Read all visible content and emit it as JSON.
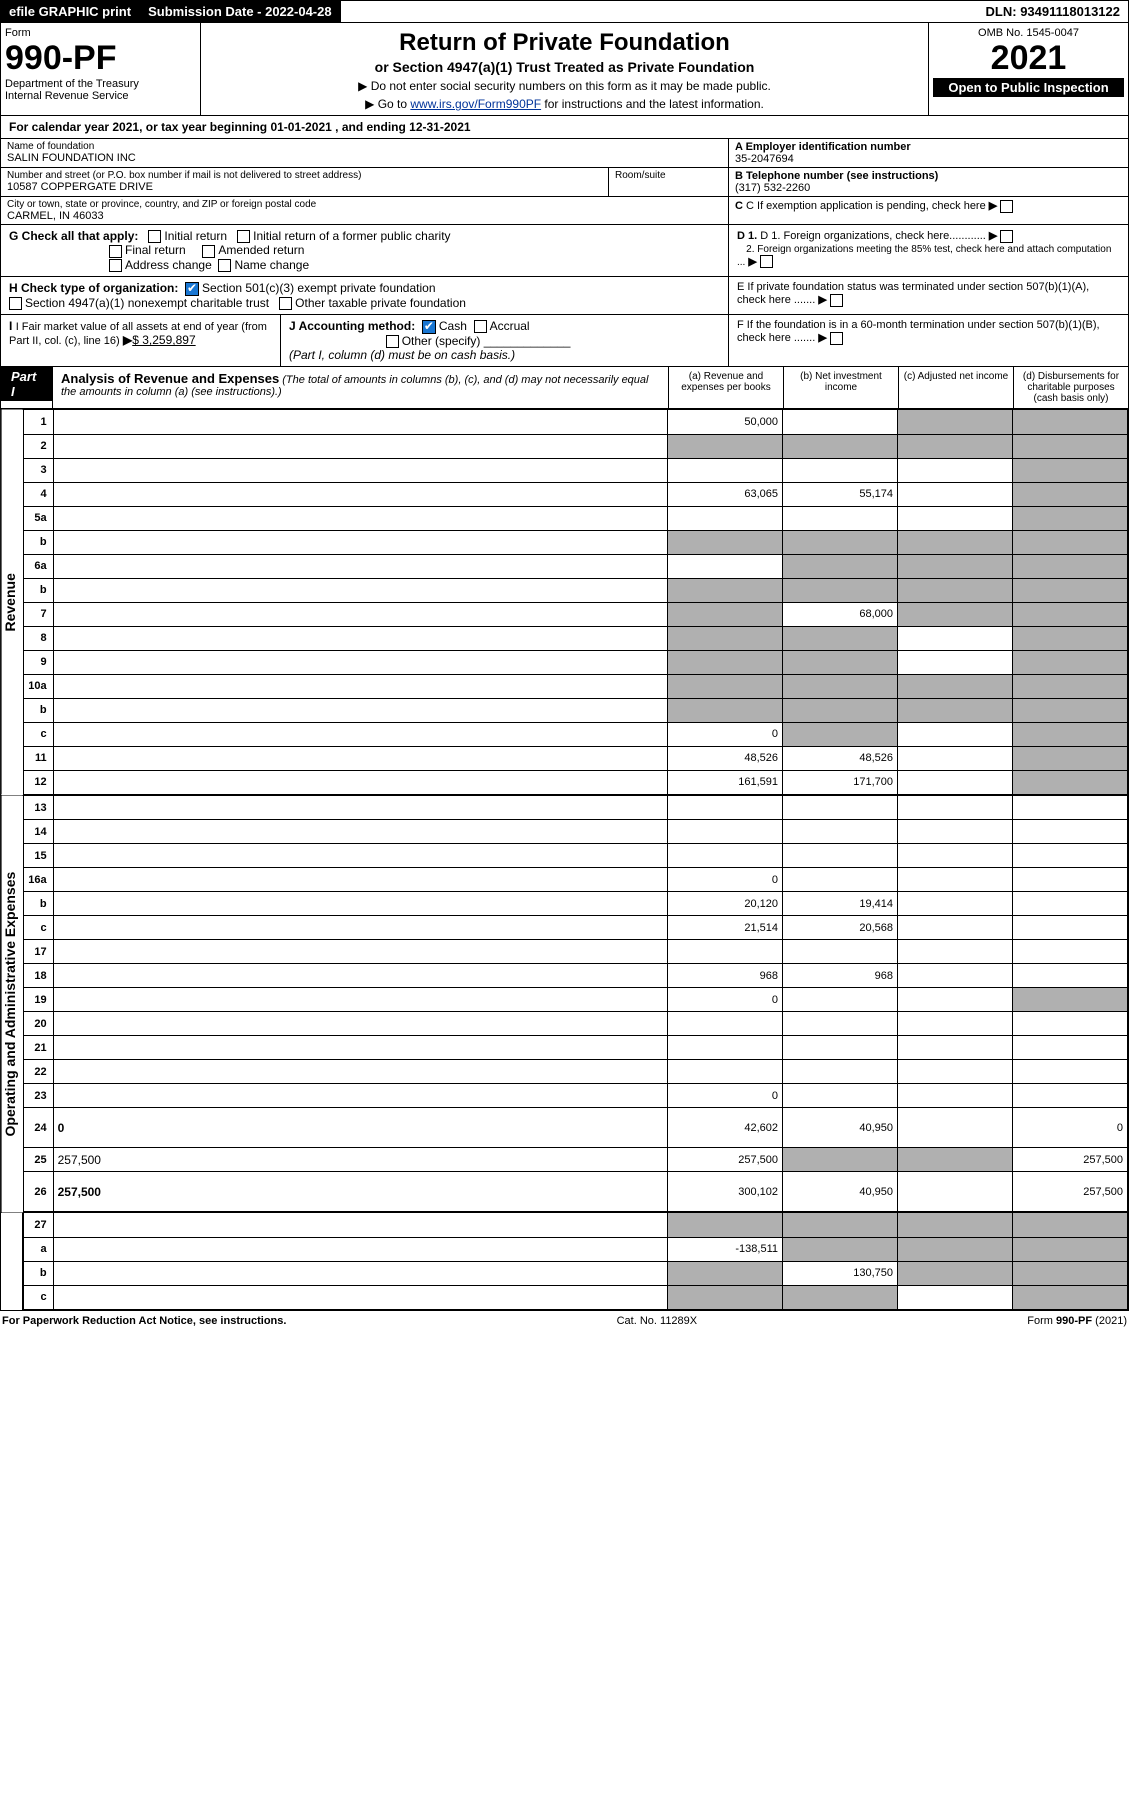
{
  "topbar": {
    "efile": "efile GRAPHIC print",
    "submission_label": "Submission Date - 2022-04-28",
    "dln": "DLN: 93491118013122"
  },
  "header": {
    "form_word": "Form",
    "form_no": "990-PF",
    "dept": "Department of the Treasury",
    "irs": "Internal Revenue Service",
    "title": "Return of Private Foundation",
    "subtitle": "or Section 4947(a)(1) Trust Treated as Private Foundation",
    "instr1": "▶ Do not enter social security numbers on this form as it may be made public.",
    "instr2_pre": "▶ Go to ",
    "instr2_link": "www.irs.gov/Form990PF",
    "instr2_post": " for instructions and the latest information.",
    "omb": "OMB No. 1545-0047",
    "year": "2021",
    "inspect": "Open to Public Inspection"
  },
  "cal_year": "For calendar year 2021, or tax year beginning 01-01-2021                , and ending 12-31-2021",
  "name": {
    "lbl": "Name of foundation",
    "val": "SALIN FOUNDATION INC",
    "addr_lbl": "Number and street (or P.O. box number if mail is not delivered to street address)",
    "addr_val": "10587 COPPERGATE DRIVE",
    "room_lbl": "Room/suite",
    "city_lbl": "City or town, state or province, country, and ZIP or foreign postal code",
    "city_val": "CARMEL, IN  46033"
  },
  "rightinfo": {
    "a_lbl": "A Employer identification number",
    "a_val": "35-2047694",
    "b_lbl": "B Telephone number (see instructions)",
    "b_val": "(317) 532-2260",
    "c_lbl": "C If exemption application is pending, check here",
    "d1_lbl": "D 1. Foreign organizations, check here............",
    "d2_lbl": "2. Foreign organizations meeting the 85% test, check here and attach computation ...",
    "e_lbl": "E  If private foundation status was terminated under section 507(b)(1)(A), check here .......",
    "f_lbl": "F  If the foundation is in a 60-month termination under section 507(b)(1)(B), check here ......."
  },
  "g": {
    "lbl": "G Check all that apply:",
    "opts": [
      "Initial return",
      "Initial return of a former public charity",
      "Final return",
      "Amended return",
      "Address change",
      "Name change"
    ]
  },
  "h": {
    "lbl": "H Check type of organization:",
    "o1": "Section 501(c)(3) exempt private foundation",
    "o2": "Section 4947(a)(1) nonexempt charitable trust",
    "o3": "Other taxable private foundation"
  },
  "i": {
    "lbl": "I Fair market value of all assets at end of year (from Part II, col. (c), line 16)",
    "val": "$  3,259,897"
  },
  "j": {
    "lbl": "J Accounting method:",
    "o1": "Cash",
    "o2": "Accrual",
    "o3": "Other (specify)",
    "note": "(Part I, column (d) must be on cash basis.)"
  },
  "part1": {
    "num": "Part I",
    "title": "Analysis of Revenue and Expenses",
    "desc": "(The total of amounts in columns (b), (c), and (d) may not necessarily equal the amounts in column (a) (see instructions).)",
    "col_a": "(a)  Revenue and expenses per books",
    "col_b": "(b)  Net investment income",
    "col_c": "(c)  Adjusted net income",
    "col_d": "(d)  Disbursements for charitable purposes (cash basis only)"
  },
  "side_rev": "Revenue",
  "side_exp": "Operating and Administrative Expenses",
  "rows": [
    {
      "n": "1",
      "d": "",
      "a": "50,000",
      "b": "",
      "c": "",
      "bg": "",
      "cg": "g",
      "dg": "g"
    },
    {
      "n": "2",
      "d": "",
      "a": "",
      "b": "",
      "c": "",
      "ag": "g",
      "bg": "g",
      "cg": "g",
      "dg": "g"
    },
    {
      "n": "3",
      "d": "",
      "a": "",
      "b": "",
      "c": "",
      "dg": "g"
    },
    {
      "n": "4",
      "d": "",
      "a": "63,065",
      "b": "55,174",
      "c": "",
      "dg": "g"
    },
    {
      "n": "5a",
      "d": "",
      "a": "",
      "b": "",
      "c": "",
      "dg": "g"
    },
    {
      "n": "b",
      "d": "",
      "a": "",
      "b": "",
      "c": "",
      "ag": "g",
      "bg": "g",
      "cg": "g",
      "dg": "g"
    },
    {
      "n": "6a",
      "d": "",
      "a": "",
      "b": "",
      "c": "",
      "bg": "g",
      "cg": "g",
      "dg": "g"
    },
    {
      "n": "b",
      "d": "",
      "a": "",
      "b": "",
      "c": "",
      "ag": "g",
      "bg": "g",
      "cg": "g",
      "dg": "g"
    },
    {
      "n": "7",
      "d": "",
      "a": "",
      "b": "68,000",
      "c": "",
      "ag": "g",
      "cg": "g",
      "dg": "g"
    },
    {
      "n": "8",
      "d": "",
      "a": "",
      "b": "",
      "c": "",
      "ag": "g",
      "bg": "g",
      "dg": "g"
    },
    {
      "n": "9",
      "d": "",
      "a": "",
      "b": "",
      "c": "",
      "ag": "g",
      "bg": "g",
      "dg": "g"
    },
    {
      "n": "10a",
      "d": "",
      "a": "",
      "b": "",
      "c": "",
      "ag": "g",
      "bg": "g",
      "cg": "g",
      "dg": "g"
    },
    {
      "n": "b",
      "d": "",
      "a": "",
      "b": "",
      "c": "",
      "ag": "g",
      "bg": "g",
      "cg": "g",
      "dg": "g"
    },
    {
      "n": "c",
      "d": "",
      "a": "0",
      "b": "",
      "c": "",
      "bg": "g",
      "dg": "g"
    },
    {
      "n": "11",
      "d": "",
      "a": "48,526",
      "b": "48,526",
      "c": "",
      "dg": "g"
    },
    {
      "n": "12",
      "d": "",
      "a": "161,591",
      "b": "171,700",
      "c": "",
      "bold": true,
      "dg": "g"
    },
    {
      "n": "13",
      "d": "",
      "a": "",
      "b": "",
      "c": "",
      "sec": "exp"
    },
    {
      "n": "14",
      "d": "",
      "a": "",
      "b": "",
      "c": ""
    },
    {
      "n": "15",
      "d": "",
      "a": "",
      "b": "",
      "c": ""
    },
    {
      "n": "16a",
      "d": "",
      "a": "0",
      "b": "",
      "c": ""
    },
    {
      "n": "b",
      "d": "",
      "a": "20,120",
      "b": "19,414",
      "c": ""
    },
    {
      "n": "c",
      "d": "",
      "a": "21,514",
      "b": "20,568",
      "c": ""
    },
    {
      "n": "17",
      "d": "",
      "a": "",
      "b": "",
      "c": ""
    },
    {
      "n": "18",
      "d": "",
      "a": "968",
      "b": "968",
      "c": ""
    },
    {
      "n": "19",
      "d": "",
      "a": "0",
      "b": "",
      "c": "",
      "dg": "g"
    },
    {
      "n": "20",
      "d": "",
      "a": "",
      "b": "",
      "c": ""
    },
    {
      "n": "21",
      "d": "",
      "a": "",
      "b": "",
      "c": ""
    },
    {
      "n": "22",
      "d": "",
      "a": "",
      "b": "",
      "c": ""
    },
    {
      "n": "23",
      "d": "",
      "a": "0",
      "b": "",
      "c": ""
    },
    {
      "n": "24",
      "d": "0",
      "a": "42,602",
      "b": "40,950",
      "c": "",
      "bold": true,
      "tall": true
    },
    {
      "n": "25",
      "d": "257,500",
      "a": "257,500",
      "b": "",
      "c": "",
      "bg": "g",
      "cg": "g"
    },
    {
      "n": "26",
      "d": "257,500",
      "a": "300,102",
      "b": "40,950",
      "c": "",
      "bold": true,
      "tall": true
    },
    {
      "n": "27",
      "d": "",
      "a": "",
      "b": "",
      "c": "",
      "ag": "g",
      "bg": "g",
      "cg": "g",
      "dg": "g",
      "noside": true
    },
    {
      "n": "a",
      "d": "",
      "a": "-138,511",
      "b": "",
      "c": "",
      "bold": true,
      "bg": "g",
      "cg": "g",
      "dg": "g"
    },
    {
      "n": "b",
      "d": "",
      "a": "",
      "b": "130,750",
      "c": "",
      "bold": true,
      "ag": "g",
      "cg": "g",
      "dg": "g"
    },
    {
      "n": "c",
      "d": "",
      "a": "",
      "b": "",
      "c": "",
      "bold": true,
      "ag": "g",
      "bg": "g",
      "dg": "g"
    }
  ],
  "footer": {
    "left": "For Paperwork Reduction Act Notice, see instructions.",
    "mid": "Cat. No. 11289X",
    "right": "Form 990-PF (2021)"
  },
  "colors": {
    "grey": "#b0b0b0",
    "link": "#003399",
    "check": "#1976d2"
  }
}
